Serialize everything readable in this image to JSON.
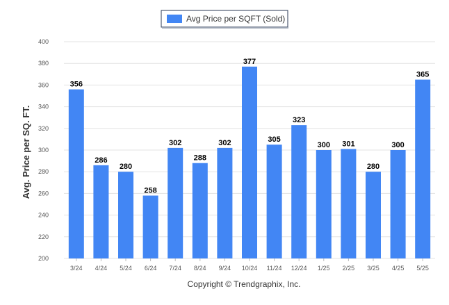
{
  "chart_data": {
    "type": "bar",
    "title": "",
    "xlabel": "",
    "ylabel": "Avg. Price per SQ. FT.",
    "ylim": [
      200,
      400
    ],
    "yticks": [
      200,
      220,
      240,
      260,
      280,
      300,
      320,
      340,
      360,
      380,
      400
    ],
    "grid": true,
    "legend_position": "top-center",
    "categories": [
      "3/24",
      "4/24",
      "5/24",
      "6/24",
      "7/24",
      "8/24",
      "9/24",
      "10/24",
      "11/24",
      "12/24",
      "1/25",
      "2/25",
      "3/25",
      "4/25",
      "5/25"
    ],
    "series": [
      {
        "name": "Avg Price per SQFT (Sold)",
        "color": "#4286f4",
        "values": [
          356,
          286,
          280,
          258,
          302,
          288,
          302,
          377,
          305,
          323,
          300,
          301,
          280,
          300,
          365
        ]
      }
    ]
  },
  "footer": {
    "copyright": "Copyright © Trendgraphix, Inc."
  },
  "colors": {
    "bar": "#4286f4",
    "grid": "#e3e3e3",
    "axis_text": "#555555",
    "value_label": "#000000",
    "legend_border": "#2b3a55"
  }
}
